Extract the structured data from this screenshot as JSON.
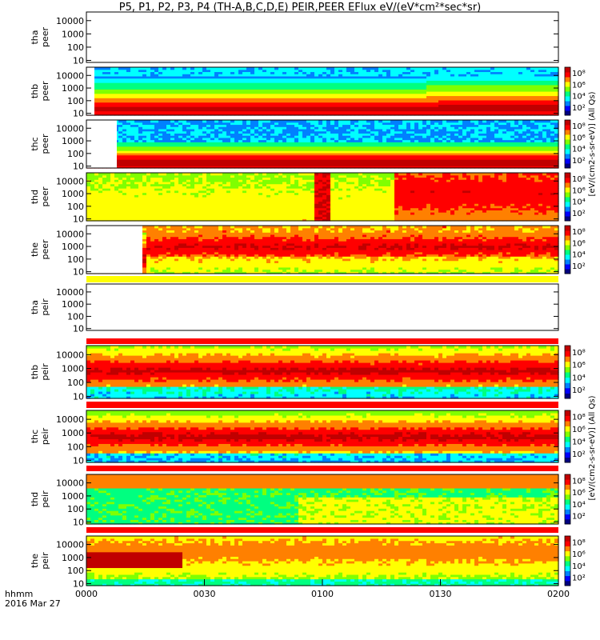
{
  "title": "P5, P1, P2, P3, P4 (TH-A,B,C,D,E) PEIR,PEER EFlux eV/(eV*cm²*sec*sr)",
  "colors": {
    "spectrum": [
      "#000080",
      "#0000ff",
      "#0080ff",
      "#00ffff",
      "#00ff80",
      "#80ff00",
      "#ffff00",
      "#ff8000",
      "#ff0000",
      "#c00000"
    ],
    "separator_yellow": "#ffff00",
    "separator_red": "#ff0000"
  },
  "chart_data": {
    "type": "heatmap",
    "time_axis": {
      "ticks": [
        "0000",
        "0030",
        "0100",
        "0130",
        "0200"
      ],
      "label_format": "hhmm",
      "date": "2016 Mar 27"
    },
    "energy_ticks": [
      "10",
      "100",
      "1000",
      "10000"
    ],
    "colorbar_ticks": [
      "10²",
      "10⁴",
      "10⁶",
      "10⁸"
    ],
    "panels": [
      {
        "id": "tha_peer",
        "label_line1": "tha",
        "label_line2": "peer",
        "has_data": false,
        "cbar_label": "[eV/(cm2-s-sr-eV)] (All Qs)"
      },
      {
        "id": "thb_peer",
        "label_line1": "thb",
        "label_line2": "peer",
        "has_data": true,
        "profile": "thb_peer",
        "cbar_label": "[eV/(cm2-s-sr-eV)] (All Qs)"
      },
      {
        "id": "thc_peer",
        "label_line1": "thc",
        "label_line2": "peer",
        "has_data": true,
        "profile": "thc_peer",
        "cbar_label": "[eV/(cm2-s-sr-eV)] (All Qs)"
      },
      {
        "id": "thd_peer",
        "label_line1": "thd",
        "label_line2": "peer",
        "has_data": true,
        "profile": "thd_peer",
        "cbar_label": "[eV/(cm2-s-sr-eV)] (All Qs)"
      },
      {
        "id": "the_peer",
        "label_line1": "the",
        "label_line2": "peer",
        "has_data": true,
        "profile": "the_peer",
        "cbar_label": "[eV/(cm2-s-sr-eV)] (All Qs)"
      },
      {
        "id": "tha_peir",
        "label_line1": "tha",
        "label_line2": "peir",
        "has_data": false,
        "cbar_label": "[eV/(cm2-s-sr-eV)] (All Qs)"
      },
      {
        "id": "thb_peir",
        "label_line1": "thb",
        "label_line2": "peir",
        "has_data": true,
        "profile": "thb_peir",
        "cbar_label": "[eV/(cm2-s-sr-eV)] (All Qs)"
      },
      {
        "id": "thc_peir",
        "label_line1": "thc",
        "label_line2": "peir",
        "has_data": true,
        "profile": "thc_peir",
        "cbar_label": "[eV/(cm2-s-sr-eV)] (All Qs)"
      },
      {
        "id": "thd_peir",
        "label_line1": "thd",
        "label_line2": "peir",
        "has_data": true,
        "profile": "thd_peir",
        "cbar_label": "[eV/(cm2-s-sr-eV)] (All Qs)"
      },
      {
        "id": "the_peir",
        "label_line1": "the",
        "label_line2": "peir",
        "has_data": true,
        "profile": "the_peir",
        "cbar_label": "[eV/(cm2-s-sr-eV)] (All Qs)"
      }
    ]
  }
}
